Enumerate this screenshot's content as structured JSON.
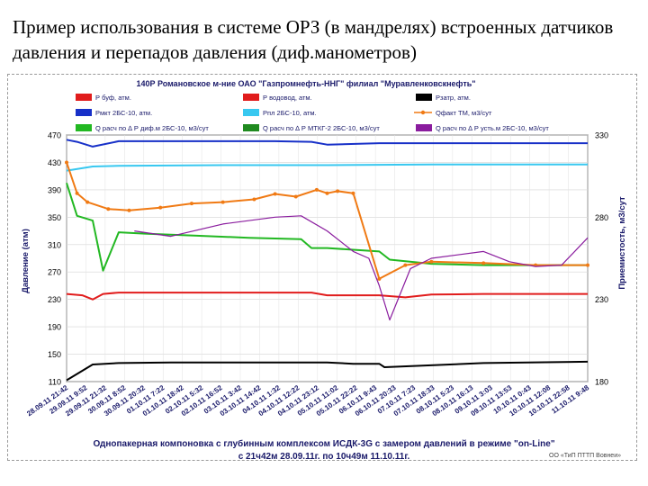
{
  "slide": {
    "title": "Пример использования в системе ОРЗ (в мандрелях) встроенных датчиков давления и перепадов давления (диф.манометров)",
    "footer_line1": "Однопакерная компоновка с глубинным комплексом ИСДК-3G с замером давлений в режиме \"on-Line\"",
    "footer_line2": "с 21ч42м 28.09.11г. по 10ч49м 11.10.11г.",
    "credit": "ОО «ТиП ПТТП Вовнеи»"
  },
  "chart_data": {
    "type": "line",
    "title": "140Р Романовское м-ние ОАО \"Газпромнефть-ННГ\" филиал \"Муравленковскнефть\"",
    "ylabel_left": "Давление (атм)",
    "ylabel_right": "Приемистость, м3/сут",
    "ylim_left": [
      110,
      470
    ],
    "yticks_left": [
      110,
      150,
      190,
      230,
      270,
      310,
      350,
      390,
      430,
      470
    ],
    "ylim_right": [
      180,
      330
    ],
    "yticks_right": [
      180,
      230,
      280,
      330
    ],
    "x_ticks": [
      "28.09.11 21:42",
      "29.09.11 9:52",
      "29.09.11 21:32",
      "30.09.11 8:52",
      "30.09.11 20:32",
      "01.10.11 7:22",
      "01.10.11 18:42",
      "02.10.11 5:32",
      "02.10.11 16:52",
      "03.10.11 3:42",
      "03.10.11 14:42",
      "04.10.11 1:32",
      "04.10.11 12:22",
      "04.10.11 23:12",
      "05.10.11 11:02",
      "05.10.11 22:22",
      "06.10.11 9:43",
      "06.10.11 20:33",
      "07.10.11 7:23",
      "07.10.11 18:33",
      "08.10.11 5:23",
      "08.10.11 16:13",
      "09.10.11 3:03",
      "09.10.11 13:53",
      "10.10.11 0:43",
      "10.10.11 12:08",
      "10.10.11 22:58",
      "11.10.11 9:48"
    ],
    "grid": true,
    "legend": [
      {
        "label": "Р буф, атм.",
        "color": "#e11c1c"
      },
      {
        "label": "Р водовод, атм.",
        "color": "#e11c1c"
      },
      {
        "label": "Рзатр, атм.",
        "color": "#000000"
      },
      {
        "label": "Рмкт 2БС-10, атм.",
        "color": "#1730c8"
      },
      {
        "label": "Рпл 2БС-10, атм.",
        "color": "#38c8f0"
      },
      {
        "label": "Qфакт ТМ, м3/сут",
        "color": "#f07a14"
      },
      {
        "label": "Q расч по ∆ Р диф.м 2БС-10, м3/сут",
        "color": "#22b822"
      },
      {
        "label": "Q расч по ∆ Р МТКГ-2 2БС-10, м3/сут",
        "color": "#1f8a1f"
      },
      {
        "label": "Q расч по ∆ Р усть.м 2БС-10, м3/сут",
        "color": "#8a1c9e"
      }
    ],
    "series": [
      {
        "name": "Рмкт 2БС-10, атм.",
        "axis": "left",
        "color": "#1730c8",
        "x": [
          0,
          0.02,
          0.05,
          0.1,
          0.2,
          0.3,
          0.4,
          0.47,
          0.5,
          0.6,
          0.7,
          0.8,
          0.9,
          1.0
        ],
        "values": [
          463,
          460,
          453,
          461,
          461,
          461,
          461,
          460,
          456,
          458,
          458,
          458,
          458,
          458
        ]
      },
      {
        "name": "Рпл 2БС-10, атм.",
        "axis": "left",
        "color": "#38c8f0",
        "x": [
          0,
          0.05,
          0.1,
          0.3,
          0.5,
          0.7,
          0.9,
          1.0
        ],
        "values": [
          418,
          424,
          425,
          426,
          426,
          427,
          427,
          427
        ]
      },
      {
        "name": "Р буф, атм.",
        "axis": "left",
        "color": "#e11c1c",
        "x": [
          0,
          0.03,
          0.05,
          0.07,
          0.1,
          0.3,
          0.47,
          0.5,
          0.6,
          0.65,
          0.7,
          0.8,
          1.0
        ],
        "values": [
          238,
          236,
          230,
          238,
          240,
          240,
          240,
          236,
          236,
          233,
          237,
          238,
          238
        ]
      },
      {
        "name": "Рзатр, атм.",
        "axis": "left",
        "color": "#000000",
        "x": [
          0,
          0.05,
          0.1,
          0.2,
          0.3,
          0.5,
          0.55,
          0.6,
          0.61,
          0.8,
          1.0
        ],
        "values": [
          112,
          135,
          137,
          138,
          138,
          138,
          136,
          136,
          131,
          137,
          139
        ]
      },
      {
        "name": "Q расч по ∆ Р диф.м 2БС-10, м3/сут",
        "axis": "left",
        "color": "#22b822",
        "x": [
          0,
          0.02,
          0.05,
          0.07,
          0.1,
          0.15,
          0.25,
          0.35,
          0.45,
          0.47,
          0.5,
          0.6,
          0.62,
          0.7,
          0.8,
          0.9,
          1.0
        ],
        "values": [
          400,
          352,
          345,
          272,
          328,
          326,
          323,
          320,
          318,
          305,
          305,
          300,
          288,
          282,
          280,
          280,
          280
        ]
      },
      {
        "name": "Qфакт ТМ, м3/сут",
        "axis": "left",
        "color": "#f07a14",
        "x": [
          0,
          0.02,
          0.04,
          0.08,
          0.12,
          0.18,
          0.24,
          0.3,
          0.36,
          0.4,
          0.44,
          0.48,
          0.5,
          0.52,
          0.55,
          0.6,
          0.65,
          0.7,
          0.8,
          0.9,
          1.0
        ],
        "values": [
          430,
          385,
          372,
          362,
          360,
          364,
          370,
          372,
          376,
          384,
          380,
          390,
          385,
          388,
          385,
          260,
          280,
          285,
          283,
          280,
          280
        ]
      },
      {
        "name": "Q расч по ∆ Р усть.м 2БС-10, м3/сут",
        "axis": "left",
        "color": "#8a1c9e",
        "x": [
          0.13,
          0.2,
          0.3,
          0.4,
          0.45,
          0.5,
          0.55,
          0.58,
          0.6,
          0.62,
          0.66,
          0.7,
          0.75,
          0.8,
          0.85,
          0.9,
          0.95,
          1.0
        ],
        "values": [
          330,
          322,
          340,
          350,
          352,
          330,
          300,
          290,
          250,
          200,
          275,
          290,
          295,
          300,
          285,
          278,
          280,
          320
        ]
      }
    ]
  }
}
